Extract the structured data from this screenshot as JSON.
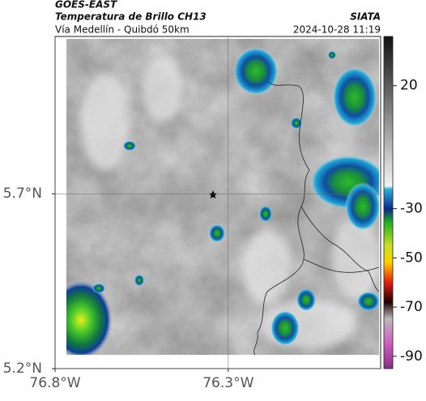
{
  "header": {
    "title": "GOES-EAST",
    "subtitle": "Temperatura de Brillo CH13",
    "region": "Vía Medellín - Quibdó 50km",
    "source": "SIATA",
    "timestamp": "2024-10-28 11:19"
  },
  "map": {
    "xlim": [
      -76.8,
      -75.86
    ],
    "ylim": [
      5.2,
      6.15
    ],
    "xticks": [
      {
        "value": -76.8,
        "label": "76.8°W"
      },
      {
        "value": -76.3,
        "label": "76.3°W"
      }
    ],
    "yticks": [
      {
        "value": 5.2,
        "label": "5.2°N"
      },
      {
        "value": 5.7,
        "label": "5.7°N"
      }
    ],
    "grid": true
  },
  "colorbar": {
    "lim": [
      -95,
      40
    ],
    "ticks": [
      20,
      -30,
      -50,
      -70,
      -90
    ]
  }
}
